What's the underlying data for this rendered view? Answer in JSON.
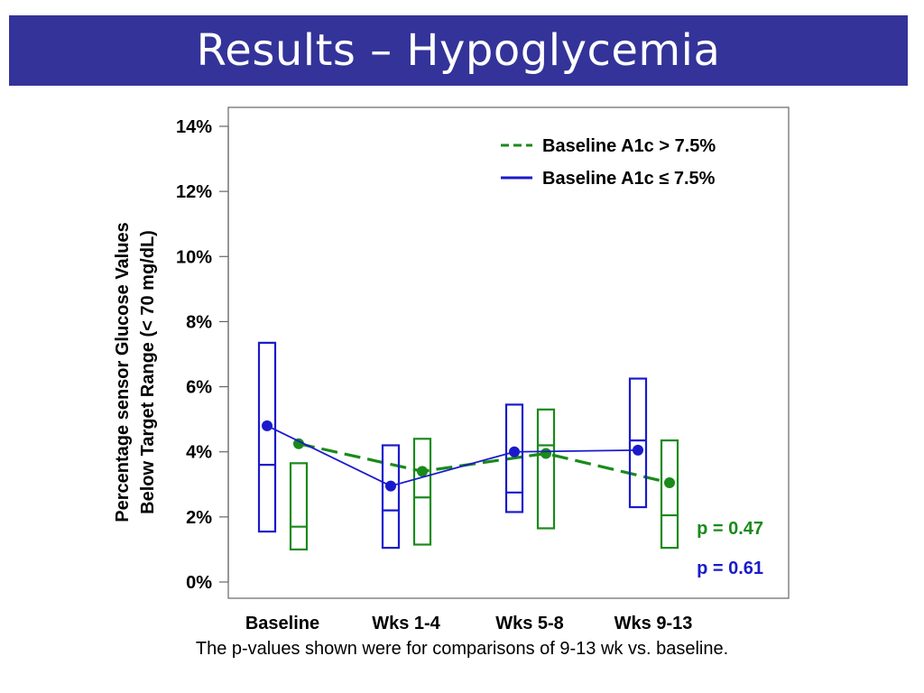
{
  "page": {
    "title": "Results – Hypoglycemia",
    "footnote": "The p-values shown were for comparisons of 9-13 wk vs. baseline."
  },
  "colors": {
    "title_bar": "#333399",
    "high": "#1a8a1a",
    "low": "#1a1acc"
  },
  "chart_data": {
    "type": "box-line",
    "title": "",
    "xlabel": "",
    "ylabel": [
      "Percentage sensor Glucose Values",
      "Below Target Range (< 70 mg/dL)"
    ],
    "categories": [
      "Baseline",
      "Wks 1-4",
      "Wks 5-8",
      "Wks 9-13"
    ],
    "ylim": [
      0,
      14
    ],
    "yticks": [
      0,
      2,
      4,
      6,
      8,
      10,
      12,
      14
    ],
    "ytick_labels": [
      "0%",
      "2%",
      "4%",
      "6%",
      "8%",
      "10%",
      "12%",
      "14%"
    ],
    "grid": false,
    "legend_position": "top-right",
    "series": [
      {
        "name": "Baseline A1c > 7.5%",
        "key": "high",
        "line_style": "dashed",
        "means": [
          4.25,
          3.4,
          3.95,
          3.05
        ],
        "boxes": [
          {
            "q1": 1.0,
            "median": 1.7,
            "q3": 3.65
          },
          {
            "q1": 1.15,
            "median": 2.6,
            "q3": 4.4
          },
          {
            "q1": 1.65,
            "median": 4.2,
            "q3": 5.3
          },
          {
            "q1": 1.05,
            "median": 2.05,
            "q3": 4.35
          }
        ],
        "p_value": "p = 0.47"
      },
      {
        "name": "Baseline A1c ≤ 7.5%",
        "key": "low",
        "line_style": "solid",
        "means": [
          4.8,
          2.95,
          4.0,
          4.05
        ],
        "boxes": [
          {
            "q1": 1.55,
            "median": 3.6,
            "q3": 7.35
          },
          {
            "q1": 1.05,
            "median": 2.2,
            "q3": 4.2
          },
          {
            "q1": 2.15,
            "median": 2.75,
            "q3": 5.45
          },
          {
            "q1": 2.3,
            "median": 4.35,
            "q3": 6.25
          }
        ],
        "p_value": "p = 0.61"
      }
    ]
  }
}
